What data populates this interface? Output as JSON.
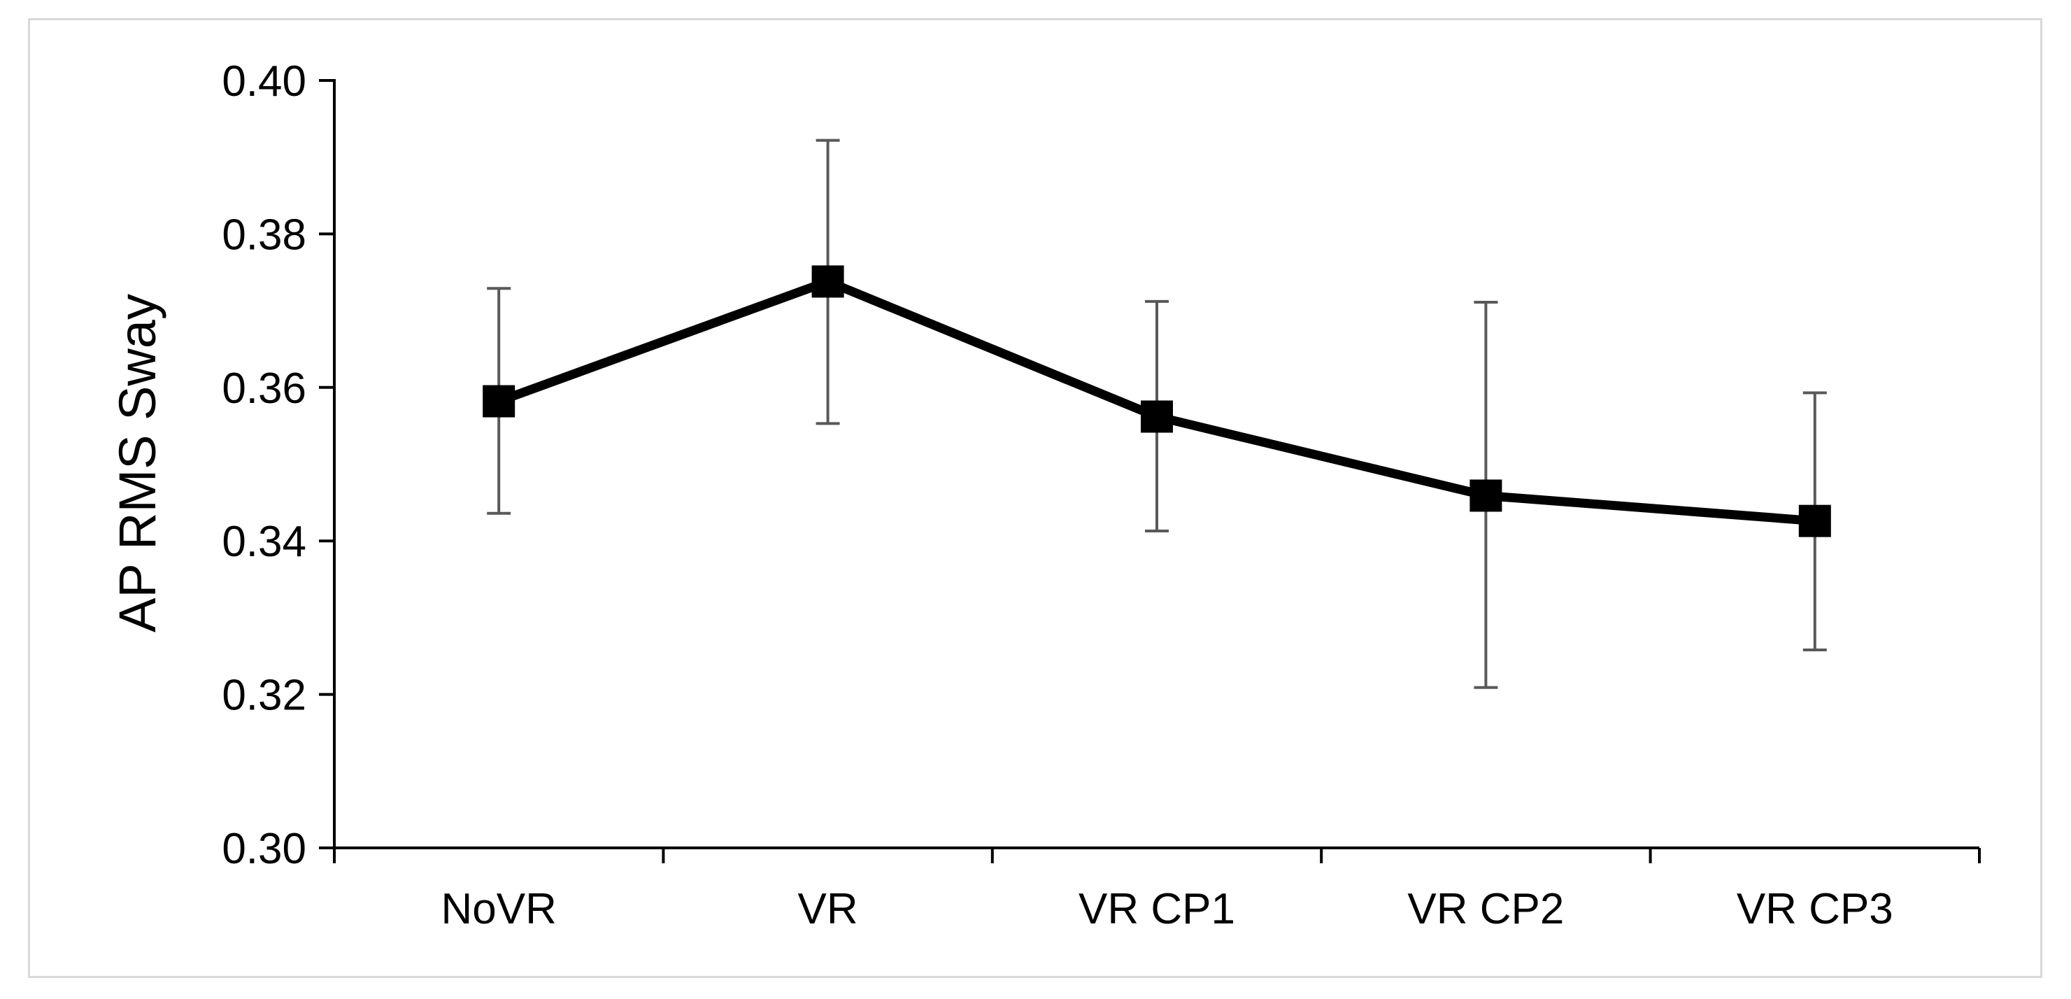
{
  "chart_data": {
    "type": "line",
    "title": "",
    "xlabel": "",
    "ylabel": "AP RMS Sway",
    "categories": [
      "NoVR",
      "VR",
      "VR CP1",
      "VR CP2",
      "VR CP3"
    ],
    "series": [
      {
        "name": "AP RMS Sway",
        "values": [
          0.3582,
          0.3738,
          0.3562,
          0.3459,
          0.3426
        ],
        "error_upper": [
          0.3729,
          0.3922,
          0.3712,
          0.3711,
          0.3593
        ],
        "error_lower": [
          0.3436,
          0.3553,
          0.3413,
          0.3209,
          0.3258
        ],
        "marker": "square",
        "color": "#000000",
        "error_color": "#595959"
      }
    ],
    "ylim": [
      0.3,
      0.4
    ],
    "yticks": [
      "0.30",
      "0.32",
      "0.34",
      "0.36",
      "0.38",
      "0.40"
    ],
    "grid": false,
    "legend": "none"
  }
}
